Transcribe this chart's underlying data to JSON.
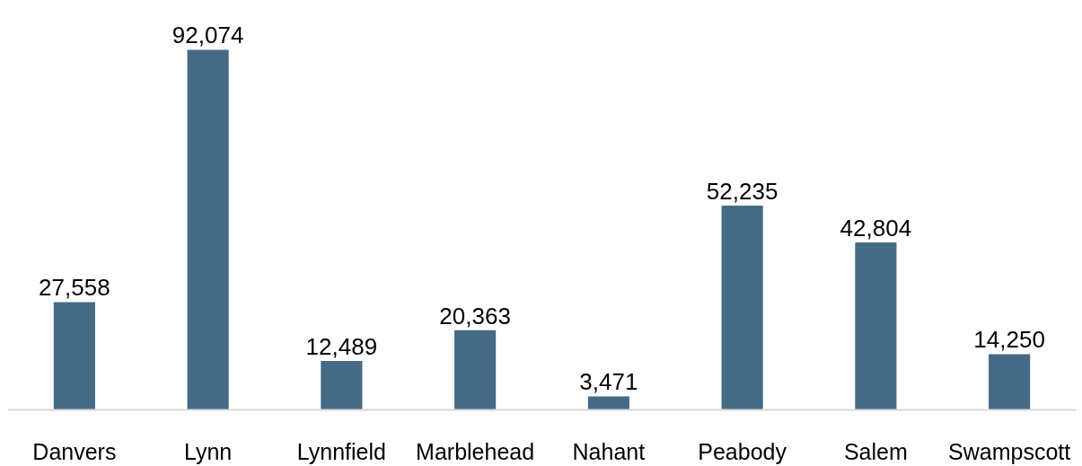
{
  "chart_data": {
    "type": "bar",
    "categories": [
      "Danvers",
      "Lynn",
      "Lynnfield",
      "Marblehead",
      "Nahant",
      "Peabody",
      "Salem",
      "Swampscott"
    ],
    "values": [
      27558,
      92074,
      12489,
      20363,
      3471,
      52235,
      42804,
      14250
    ],
    "value_labels": [
      "27,558",
      "92,074",
      "12,489",
      "20,363",
      "3,471",
      "52,235",
      "42,804",
      "14,250"
    ],
    "color": "#446a85"
  }
}
